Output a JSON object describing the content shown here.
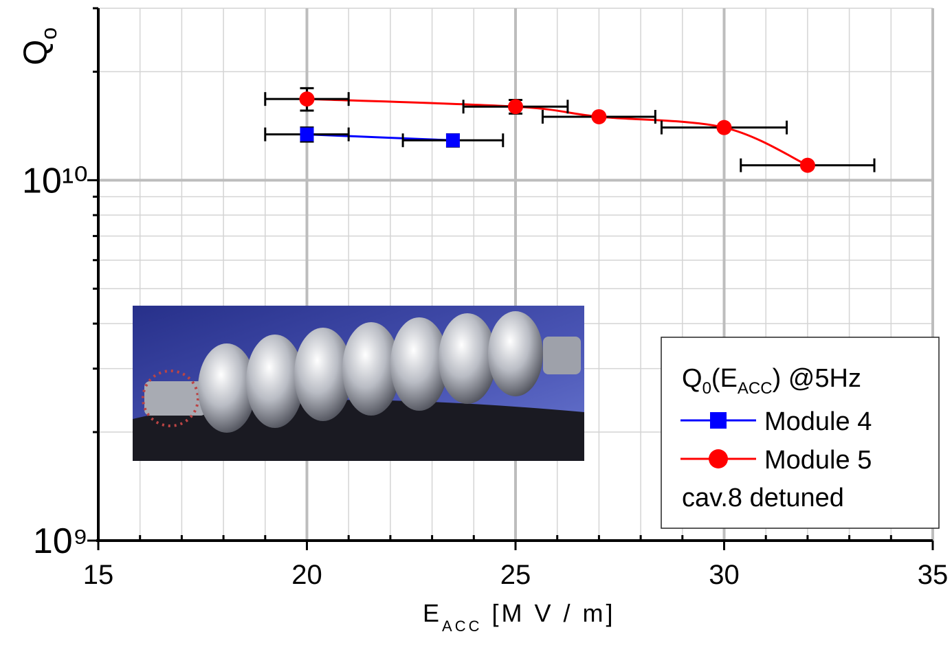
{
  "chart_data": {
    "type": "scatter",
    "x_label": {
      "main": "E",
      "sub": "ACC",
      "rest": " [M V / m]"
    },
    "y_label": {
      "main": "Q",
      "sub": "o"
    },
    "xlim": [
      15,
      35
    ],
    "xticks": [
      15,
      20,
      25,
      30,
      35
    ],
    "xminorticks": [
      16,
      17,
      18,
      19,
      21,
      22,
      23,
      24,
      26,
      27,
      28,
      29,
      31,
      32,
      33,
      34
    ],
    "ylim": [
      1000000000,
      30000000000
    ],
    "yticks": [
      {
        "value": 1000000000,
        "label": "10⁹"
      },
      {
        "value": 10000000000,
        "label": "10¹⁰"
      }
    ],
    "yminorticks": [
      2000000000,
      3000000000,
      4000000000,
      5000000000,
      6000000000,
      7000000000,
      8000000000,
      9000000000,
      20000000000,
      30000000000
    ],
    "log_y": true,
    "grid": true,
    "legend": {
      "title": {
        "main": "Q",
        "sub1": "0",
        "mid": "(E",
        "sub2": "ACC",
        "rest": ") @5Hz"
      },
      "note": "cav.8 detuned",
      "position": "lower right"
    },
    "series": [
      {
        "name": "Module 4",
        "color": "#0000ff",
        "marker": "square",
        "x": [
          20,
          23.5
        ],
        "values": [
          13400000000,
          12900000000
        ],
        "x_errors": [
          1,
          1.2
        ],
        "y_errors": [
          600000000,
          500000000
        ]
      },
      {
        "name": "Module 5",
        "color": "#ff0000",
        "marker": "circle",
        "x": [
          20,
          25,
          27,
          30,
          32
        ],
        "values": [
          16800000000,
          16000000000,
          15000000000,
          14000000000,
          11000000000
        ],
        "x_errors": [
          1,
          1.25,
          1.35,
          1.5,
          1.6
        ],
        "y_errors": [
          1200000000,
          700000000,
          null,
          null,
          null
        ]
      }
    ]
  }
}
